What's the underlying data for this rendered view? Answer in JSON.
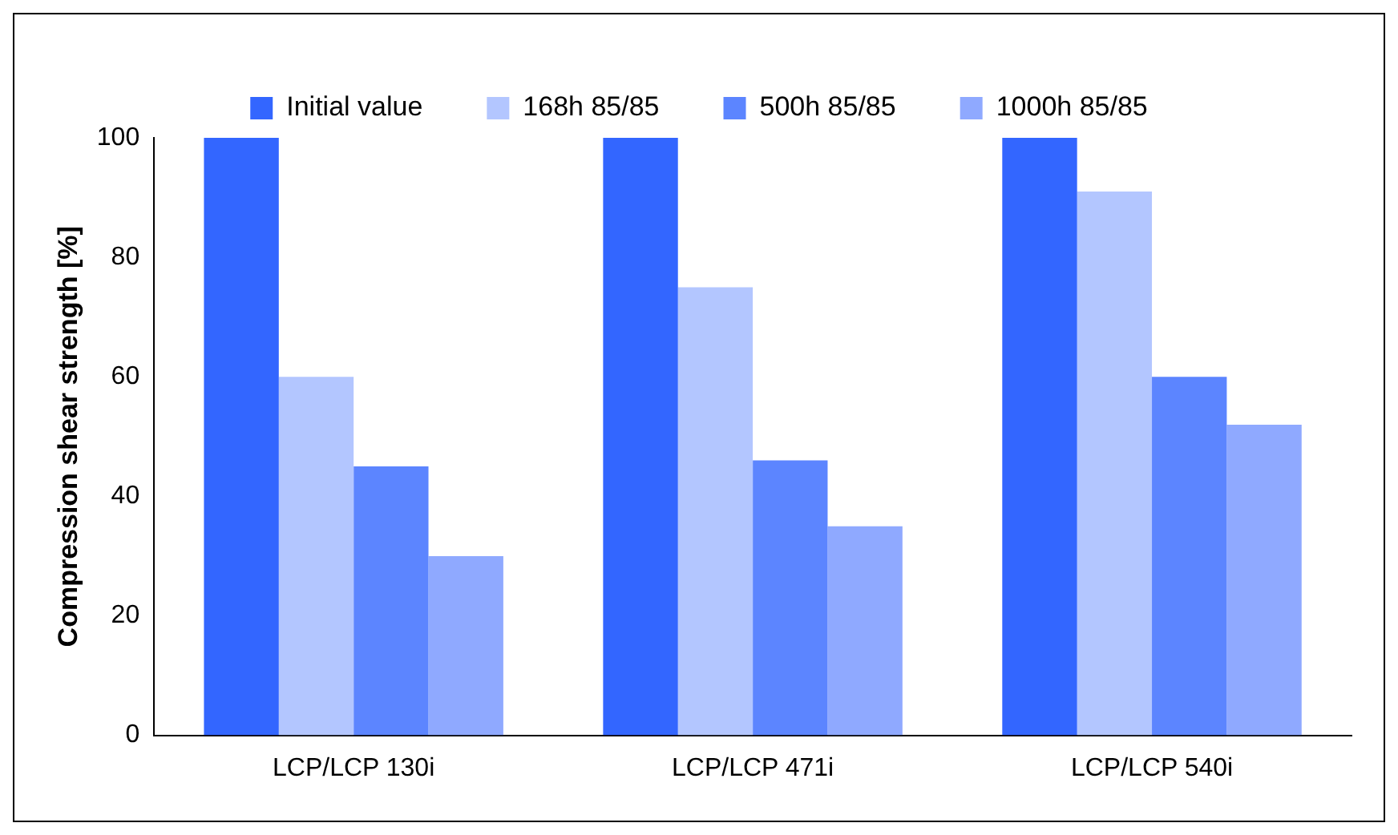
{
  "chart_data": {
    "type": "bar",
    "ylabel": "Compression shear strength [%]",
    "categories": [
      "LCP/LCP 130i",
      "LCP/LCP 471i",
      "LCP/LCP 540i"
    ],
    "series": [
      {
        "name": "Initial value",
        "color": "#3366ff",
        "values": [
          100,
          100,
          100
        ]
      },
      {
        "name": "168h 85/85",
        "color": "#b3c6ff",
        "values": [
          60,
          75,
          91
        ]
      },
      {
        "name": "500h 85/85",
        "color": "#5c85ff",
        "values": [
          45,
          46,
          60
        ]
      },
      {
        "name": "1000h 85/85",
        "color": "#8fa9ff",
        "values": [
          30,
          35,
          52
        ]
      }
    ],
    "ylim": [
      0,
      100
    ],
    "yticks": [
      0,
      20,
      40,
      60,
      80,
      100
    ],
    "grid": false,
    "legend": "top"
  }
}
